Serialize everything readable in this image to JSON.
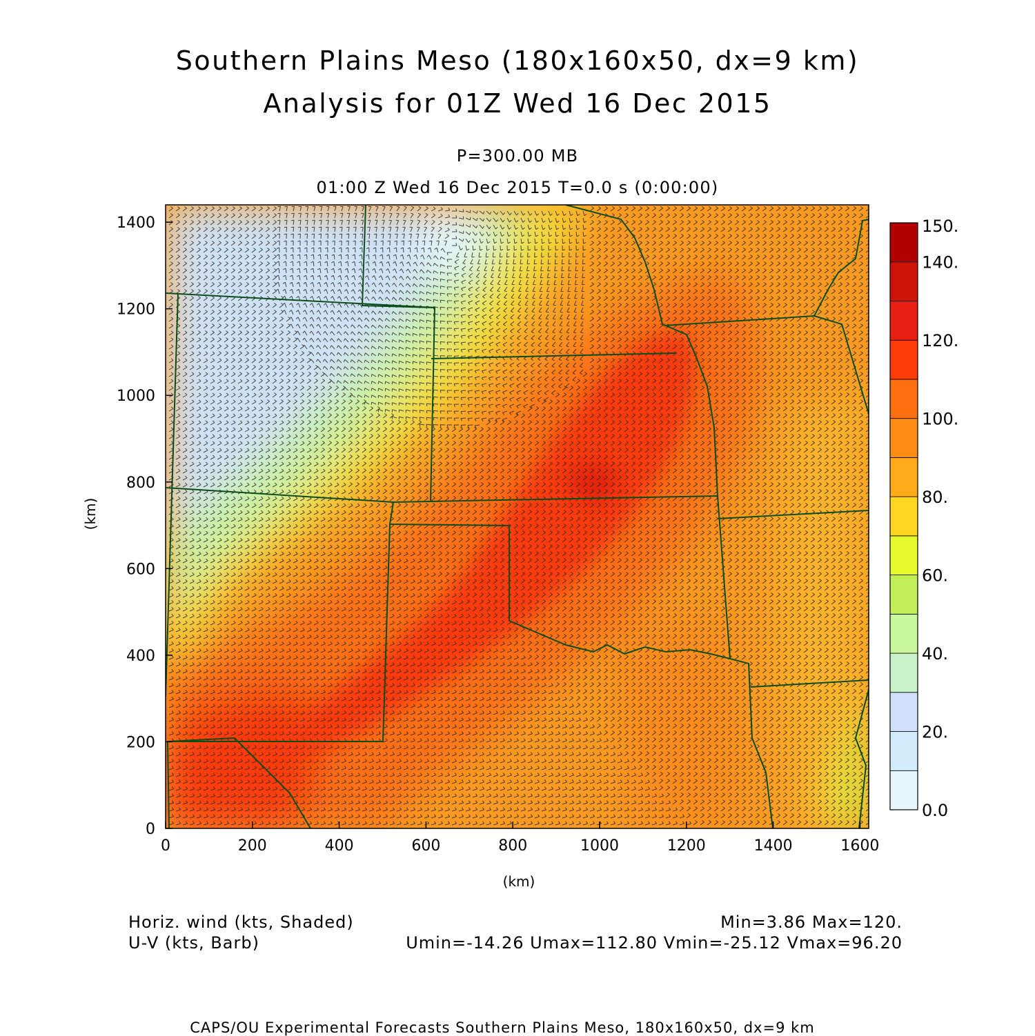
{
  "title": {
    "line1": "Southern Plains Meso (180x160x50, dx=9 km)",
    "line2": "Analysis for 01Z Wed 16 Dec 2015"
  },
  "subtitle": {
    "level": "P=300.00 MB",
    "time": "01:00 Z Wed 16 Dec 2015    T=0.0 s (0:00:00)"
  },
  "axes": {
    "xlabel": "(km)",
    "ylabel": "(km)",
    "xticks": [
      0,
      200,
      400,
      600,
      800,
      1000,
      1200,
      1400,
      1600
    ],
    "yticks": [
      0,
      200,
      400,
      600,
      800,
      1000,
      1200,
      1400
    ],
    "xlim": [
      0,
      1620
    ],
    "ylim": [
      0,
      1440
    ]
  },
  "colorbar": {
    "levels": [
      0,
      10,
      20,
      30,
      40,
      50,
      60,
      70,
      80,
      90,
      100,
      110,
      120,
      130,
      140,
      150
    ],
    "labels": [
      "0.0",
      "20.",
      "40.",
      "60.",
      "80.",
      "100.",
      "120.",
      "140.",
      "150."
    ],
    "colors": [
      "#e6f7fc",
      "#d3ecfb",
      "#d0e0f8",
      "#c9f2c9",
      "#c9f79b",
      "#c1ed57",
      "#e6fa2d",
      "#ffd621",
      "#ffab1a",
      "#ff8c14",
      "#ff6e0f",
      "#ff3a0b",
      "#e61f10",
      "#cc1408",
      "#b30000"
    ]
  },
  "legend": {
    "shaded": "Horiz. wind (kts, Shaded)",
    "barb": "U-V (kts, Barb)",
    "minmax": "Min=3.86 Max=120.",
    "uvstats": "Umin=-14.26 Umax=112.80 Vmin=-25.12 Vmax=96.20"
  },
  "footer": "CAPS/OU Experimental Forecasts  Southern Plains Meso, 180x160x50, dx=9 km",
  "colors": {
    "borders": "#0a4d1a",
    "barbs": "#2a2a2a"
  }
}
